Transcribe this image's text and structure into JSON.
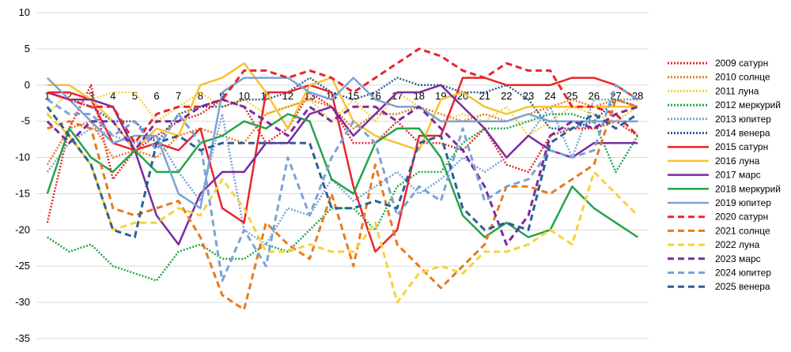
{
  "chart_data": {
    "type": "line",
    "title": "",
    "xlabel": "",
    "ylabel": "",
    "ylim": [
      -35,
      10
    ],
    "yticks": [
      10,
      5,
      0,
      -5,
      -10,
      -15,
      -20,
      -25,
      -30,
      -35
    ],
    "x": [
      1,
      2,
      3,
      4,
      5,
      6,
      7,
      8,
      9,
      10,
      11,
      12,
      13,
      14,
      15,
      16,
      17,
      18,
      19,
      20,
      21,
      22,
      23,
      24,
      25,
      26,
      27,
      28
    ],
    "grid": "horizontal",
    "legend_position": "right",
    "series": [
      {
        "name": "2009 сатурн",
        "color": "#e8262b",
        "style": "dotted",
        "values": [
          -19,
          -6,
          0,
          -13,
          -9,
          -7,
          -5,
          -4,
          -2,
          -3,
          -8,
          -6,
          -1,
          -3,
          -8,
          -8,
          -5,
          -8,
          -8,
          -9,
          -6,
          -11,
          -12,
          -7,
          -6,
          -6,
          -5,
          -7
        ]
      },
      {
        "name": "2010 солнце",
        "color": "#e97a1c",
        "style": "dotted",
        "values": [
          -11,
          -6,
          -5,
          -10,
          -9,
          -10,
          -7,
          -6,
          -7,
          -8,
          -4,
          -3,
          -2,
          -3,
          -6,
          -4,
          -4,
          -3,
          -4,
          -5,
          -4,
          -5,
          -4,
          -3,
          -2,
          -3,
          -2,
          -3
        ]
      },
      {
        "name": "2011 луна",
        "color": "#f7d23b",
        "style": "dotted",
        "values": [
          -4,
          -1,
          -2,
          -1,
          -1,
          -5,
          -3,
          -1,
          -3,
          -2,
          -4,
          -3,
          -2,
          -5,
          -2,
          -5,
          -1,
          -3,
          -5,
          -4,
          -5,
          -3,
          -7,
          -5,
          -3,
          -4,
          -5,
          -3
        ]
      },
      {
        "name": "2012 меркурий",
        "color": "#24a447",
        "style": "dotted",
        "values": [
          -21,
          -23,
          -22,
          -25,
          -26,
          -27,
          -23,
          -22,
          -24,
          -24,
          -22,
          -23,
          -20,
          -17,
          -17,
          -20,
          -14,
          -12,
          -12,
          -8,
          -6,
          -6,
          -5,
          -4,
          -4,
          -5,
          -12,
          -7
        ]
      },
      {
        "name": "2013 юпитер",
        "color": "#7aa3d6",
        "style": "dotted",
        "values": [
          -12,
          -8,
          -6,
          -7,
          -8,
          -7,
          -12,
          -16,
          -4,
          -20,
          -22,
          -17,
          -18,
          -13,
          -16,
          -14,
          -12,
          -15,
          -13,
          -10,
          -12,
          -10,
          -7,
          -3,
          -10,
          -2,
          -2,
          -2
        ]
      },
      {
        "name": "2014 венера",
        "color": "#2e5f96",
        "style": "dotted",
        "values": [
          -1,
          -2,
          -3,
          -5,
          -5,
          -8,
          -4,
          -3,
          -3,
          -2,
          -2,
          -1,
          1,
          -1,
          -2,
          -1,
          1,
          0,
          0,
          -1,
          -1,
          0,
          -2,
          -6,
          -6,
          -5,
          -2,
          -3
        ]
      },
      {
        "name": "2015 сатурн",
        "color": "#e8262b",
        "style": "solid",
        "values": [
          -1,
          -1,
          -2,
          -8,
          -9,
          -8,
          -9,
          -6,
          -17,
          -19,
          -1,
          -1,
          0,
          -1,
          -14,
          -23,
          -20,
          -7,
          -7,
          1,
          1,
          0,
          0,
          0,
          1,
          1,
          0,
          -2
        ]
      },
      {
        "name": "2016 луна",
        "color": "#f7c331",
        "style": "solid",
        "values": [
          0,
          0,
          -2,
          -5,
          -9,
          -6,
          -7,
          0,
          1,
          3,
          -1,
          -6,
          0,
          1,
          -5,
          -7,
          -8,
          -9,
          -2,
          -1,
          -3,
          -4,
          -3,
          -3,
          -3,
          -3,
          -3,
          -3
        ]
      },
      {
        "name": "2017 марс",
        "color": "#7b2aa0",
        "style": "solid",
        "values": [
          -1,
          -2,
          -2,
          -3,
          -9,
          -18,
          -22,
          -15,
          -12,
          -12,
          -8,
          -8,
          -4,
          -3,
          -7,
          -4,
          -1,
          -1,
          0,
          -3,
          -6,
          -10,
          -7,
          -9,
          -10,
          -8,
          -8,
          -8
        ]
      },
      {
        "name": "2018 меркурий",
        "color": "#24a447",
        "style": "solid",
        "values": [
          -15,
          -6,
          -10,
          -12,
          -9,
          -12,
          -12,
          -8,
          -7,
          -5,
          -6,
          -4,
          -5,
          -13,
          -15,
          -8,
          -6,
          -6,
          -10,
          -18,
          -21,
          -19,
          -21,
          -20,
          -14,
          -17,
          -19,
          -21
        ]
      },
      {
        "name": "2019 юпитер",
        "color": "#7aa3d6",
        "style": "solid",
        "values": [
          1,
          -2,
          -5,
          -8,
          -7,
          -7,
          -15,
          -17,
          -1,
          1,
          1,
          1,
          -1,
          -2,
          1,
          -2,
          -3,
          -3,
          -5,
          -5,
          -5,
          -5,
          -4,
          -5,
          -5,
          -5,
          -5,
          -5
        ]
      },
      {
        "name": "2020 сатурн",
        "color": "#e8262b",
        "style": "dashed",
        "values": [
          -1,
          -2,
          -3,
          -3,
          -8,
          -4,
          -3,
          -3,
          -2,
          2,
          2,
          1,
          2,
          1,
          -1,
          1,
          3,
          5,
          4,
          2,
          1,
          3,
          2,
          2,
          -3,
          -3,
          -4,
          -7
        ]
      },
      {
        "name": "2021 солнце",
        "color": "#e97a1c",
        "style": "dashed",
        "values": [
          -6,
          -5,
          -6,
          -17,
          -18,
          -17,
          -16,
          -21,
          -29,
          -31,
          -19,
          -22,
          -24,
          -15,
          -25,
          -11,
          -22,
          -25,
          -28,
          -25,
          -22,
          -14,
          -14,
          -15,
          -13,
          -11,
          -2,
          -3
        ]
      },
      {
        "name": "2022 луна",
        "color": "#f7d23b",
        "style": "dashed",
        "values": [
          -4,
          -7,
          -11,
          -20,
          -19,
          -19,
          -17,
          -18,
          -13,
          -17,
          -23,
          -23,
          -22,
          -23,
          -23,
          -19,
          -30,
          -26,
          -25,
          -26,
          -23,
          -23,
          -22,
          -20,
          -22,
          -12,
          -15,
          -18
        ]
      },
      {
        "name": "2023 марс",
        "color": "#7b2aa0",
        "style": "dashed",
        "values": [
          -5,
          -8,
          -5,
          -5,
          -9,
          -5,
          -5,
          -3,
          -2,
          -3,
          -5,
          -7,
          -3,
          -5,
          -3,
          -3,
          -5,
          -3,
          -6,
          -9,
          -14,
          -22,
          -18,
          -7,
          -5,
          -6,
          -4,
          -3
        ]
      },
      {
        "name": "2024 юпитер",
        "color": "#7aa3d6",
        "style": "dashed",
        "values": [
          -2,
          -4,
          -4,
          -7,
          -5,
          -9,
          -4,
          -8,
          -27,
          -20,
          -25,
          -10,
          -18,
          -10,
          -5,
          -8,
          -18,
          -14,
          -16,
          -6,
          -16,
          -14,
          -13,
          -9,
          -10,
          -9,
          0,
          -2
        ]
      },
      {
        "name": "2025 венера",
        "color": "#2e5f96",
        "style": "dashed",
        "values": [
          -3,
          -7,
          -11,
          -20,
          -21,
          -8,
          -7,
          -9,
          -8,
          -8,
          -8,
          -8,
          -8,
          -17,
          -17,
          -16,
          -17,
          -8,
          -7,
          -17,
          -20,
          -19,
          -20,
          -8,
          -6,
          -4,
          -6,
          -4
        ]
      }
    ]
  }
}
